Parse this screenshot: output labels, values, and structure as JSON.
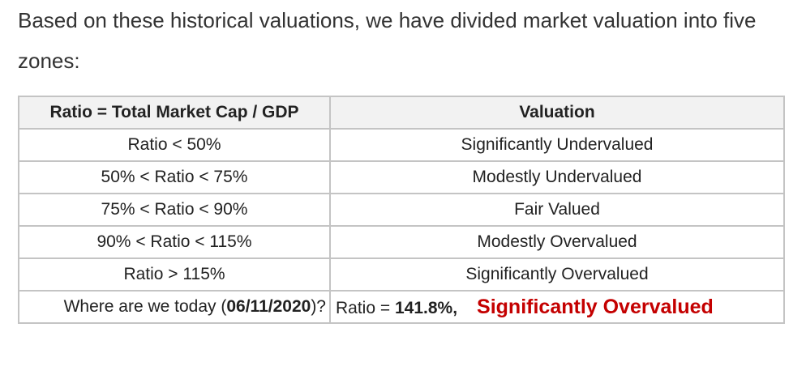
{
  "intro": {
    "text": "Based on these historical valuations, we have divided market valuation into five zones:"
  },
  "table": {
    "headers": [
      "Ratio = Total Market Cap / GDP",
      "Valuation"
    ],
    "rows": [
      {
        "ratio": "Ratio < 50%",
        "valuation": "Significantly Undervalued"
      },
      {
        "ratio": "50% < Ratio < 75%",
        "valuation": "Modestly Undervalued"
      },
      {
        "ratio": "75% < Ratio < 90%",
        "valuation": "Fair Valued"
      },
      {
        "ratio": "90% < Ratio < 115%",
        "valuation": "Modestly Overvalued"
      },
      {
        "ratio": "Ratio > 115%",
        "valuation": "Significantly Overvalued"
      }
    ],
    "today": {
      "question_prefix": "Where are we today (",
      "date": "06/11/2020",
      "question_suffix": ")?",
      "ratio_prefix": "Ratio = ",
      "ratio_value": "141.8%,",
      "verdict": "Significantly Overvalued",
      "verdict_color": "#c40000"
    }
  }
}
